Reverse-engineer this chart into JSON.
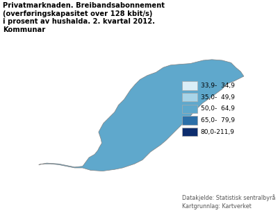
{
  "title_line1": "Privatmarknaden. Breibandsabonnement",
  "title_line2": "(overføringskapasitet over 128 kbit/s)",
  "title_line3": "i prosent av hushalda. 2. kvartal 2012.",
  "title_line4": "Kommunar",
  "legend_labels": [
    "33,9-  34,9",
    "35,0-  49,9",
    "50,0-  64,9",
    "65,0-  79,9",
    "80,0-211,9"
  ],
  "legend_colors": [
    "#daeef7",
    "#a8d4e8",
    "#5fa8cc",
    "#2c6fa8",
    "#0d2d6e"
  ],
  "source_line1": "Datakjelde: Statistisk sentralbyrå",
  "source_line2": "Kartgrunnlag: Kartverket",
  "bg_color": "#ffffff",
  "map_ocean": "#ffffff",
  "title_fontsize": 7.2,
  "legend_fontsize": 6.5,
  "source_fontsize": 5.8
}
